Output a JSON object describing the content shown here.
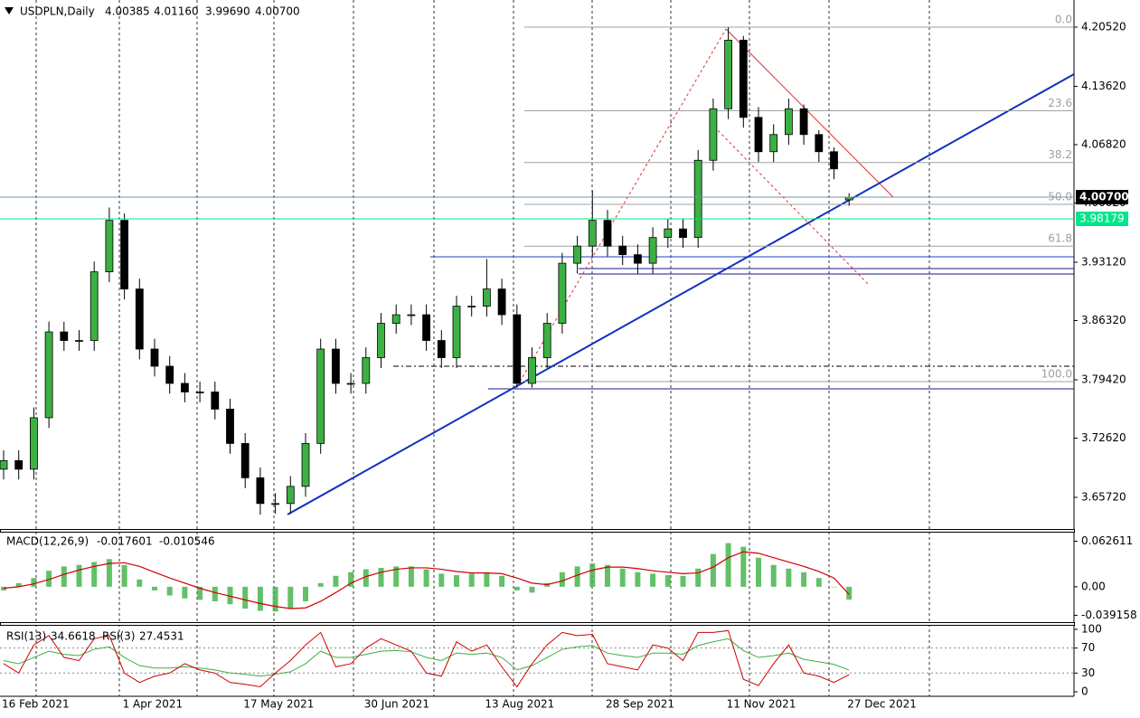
{
  "chart_data": [
    {
      "type": "candlestick",
      "title": "USDPLN,Daily",
      "last_bar_labels": [
        "4.00385",
        "4.01160",
        "3.99690",
        "4.00700"
      ],
      "categories": [
        "16 Feb 2021",
        null,
        null,
        null,
        null,
        null,
        null,
        null,
        "1 Apr 2021",
        null,
        null,
        null,
        null,
        null,
        null,
        null,
        "17 May 2021",
        null,
        null,
        null,
        null,
        null,
        null,
        null,
        "30 Jun 2021",
        null,
        null,
        null,
        null,
        null,
        null,
        null,
        "13 Aug 2021",
        null,
        null,
        null,
        null,
        null,
        null,
        null,
        "28 Sep 2021",
        null,
        null,
        null,
        null,
        null,
        null,
        null,
        "11 Nov 2021",
        null,
        null,
        null,
        null,
        null,
        null,
        null,
        "27 Dec 2021"
      ],
      "open": [
        3.69,
        3.7,
        3.69,
        3.75,
        3.85,
        3.84,
        3.84,
        3.92,
        3.98,
        3.9,
        3.83,
        3.81,
        3.79,
        3.78,
        3.78,
        3.76,
        3.72,
        3.68,
        3.65,
        3.65,
        3.67,
        3.72,
        3.83,
        3.79,
        3.79,
        3.82,
        3.86,
        3.87,
        3.87,
        3.84,
        3.82,
        3.88,
        3.88,
        3.9,
        3.87,
        3.79,
        3.82,
        3.86,
        3.93,
        3.95,
        3.98,
        3.95,
        3.94,
        3.93,
        3.96,
        3.97,
        3.96,
        4.05,
        4.11,
        4.19,
        4.1,
        4.06,
        4.08,
        4.11,
        4.08,
        4.06,
        4.00385
      ],
      "high": [
        3.712,
        3.712,
        3.762,
        3.862,
        3.862,
        3.852,
        3.932,
        3.995,
        3.988,
        3.912,
        3.842,
        3.822,
        3.802,
        3.792,
        3.792,
        3.772,
        3.732,
        3.692,
        3.662,
        3.682,
        3.732,
        3.842,
        3.842,
        3.802,
        3.832,
        3.872,
        3.882,
        3.882,
        3.882,
        3.852,
        3.892,
        3.892,
        3.935,
        3.912,
        3.882,
        3.832,
        3.872,
        3.942,
        3.962,
        4.015,
        3.992,
        3.962,
        3.952,
        3.972,
        3.982,
        3.982,
        4.062,
        4.122,
        4.205,
        4.195,
        4.112,
        4.092,
        4.122,
        4.115,
        4.085,
        4.065,
        4.0116
      ],
      "low": [
        3.678,
        3.678,
        3.678,
        3.738,
        3.828,
        3.828,
        3.828,
        3.908,
        3.888,
        3.818,
        3.798,
        3.778,
        3.768,
        3.768,
        3.748,
        3.708,
        3.668,
        3.637,
        3.638,
        3.638,
        3.658,
        3.708,
        3.778,
        3.778,
        3.778,
        3.808,
        3.848,
        3.858,
        3.828,
        3.808,
        3.808,
        3.868,
        3.868,
        3.858,
        3.785,
        3.785,
        3.808,
        3.848,
        3.918,
        3.938,
        3.938,
        3.928,
        3.918,
        3.918,
        3.948,
        3.948,
        3.948,
        4.038,
        4.098,
        4.088,
        4.048,
        4.048,
        4.068,
        4.068,
        4.048,
        4.028,
        3.9969
      ],
      "close": [
        3.7,
        3.69,
        3.75,
        3.85,
        3.84,
        3.84,
        3.92,
        3.98,
        3.9,
        3.83,
        3.81,
        3.79,
        3.78,
        3.78,
        3.76,
        3.72,
        3.68,
        3.65,
        3.65,
        3.67,
        3.72,
        3.83,
        3.79,
        3.79,
        3.82,
        3.86,
        3.87,
        3.87,
        3.84,
        3.82,
        3.88,
        3.88,
        3.9,
        3.87,
        3.79,
        3.82,
        3.86,
        3.93,
        3.95,
        3.98,
        3.95,
        3.94,
        3.93,
        3.96,
        3.97,
        3.96,
        4.05,
        4.11,
        4.19,
        4.1,
        4.06,
        4.08,
        4.11,
        4.08,
        4.06,
        4.04,
        4.007
      ],
      "up_color": "#3cb043",
      "down_color": "#000000",
      "ylim": [
        3.6203,
        4.2368
      ],
      "yticks": [
        {
          "value": 4.2052,
          "label": "4.20520"
        },
        {
          "value": 4.1362,
          "label": "4.13620"
        },
        {
          "value": 4.0682,
          "label": "4.06820"
        },
        {
          "value": 4.0002,
          "label": "4.00020"
        },
        {
          "value": 3.9312,
          "label": "3.93120"
        },
        {
          "value": 3.8632,
          "label": "3.86320"
        },
        {
          "value": 3.7942,
          "label": "3.79420"
        },
        {
          "value": 3.7262,
          "label": "3.72620"
        },
        {
          "value": 3.6572,
          "label": "3.65720"
        }
      ],
      "price_lines": [
        {
          "value": 3.98179,
          "label": "3.98179",
          "color": "#00e68a"
        },
        {
          "value": 4.007,
          "label": "4.00700",
          "color": "#000000"
        }
      ],
      "fib_levels": [
        {
          "ratio": "0.0",
          "price": 4.2052
        },
        {
          "ratio": "23.6",
          "price": 4.1077
        },
        {
          "ratio": "38.2",
          "price": 4.0474
        },
        {
          "ratio": "50.0",
          "price": 3.99865
        },
        {
          "ratio": "61.8",
          "price": 3.9499
        },
        {
          "ratio": "100.0",
          "price": 3.7921
        }
      ]
    },
    {
      "type": "macd",
      "title": "MACD(12,26,9)",
      "series": [
        {
          "name": "MACD",
          "color": "#3cb043",
          "values": [
            -0.005,
            0.005,
            0.012,
            0.022,
            0.028,
            0.03,
            0.034,
            0.038,
            0.03,
            0.01,
            -0.005,
            -0.012,
            -0.016,
            -0.018,
            -0.02,
            -0.024,
            -0.03,
            -0.033,
            -0.034,
            -0.03,
            -0.02,
            0.005,
            0.015,
            0.02,
            0.024,
            0.026,
            0.028,
            0.028,
            0.024,
            0.018,
            0.016,
            0.018,
            0.02,
            0.015,
            -0.005,
            -0.008,
            0.005,
            0.02,
            0.028,
            0.032,
            0.03,
            0.025,
            0.02,
            0.018,
            0.016,
            0.015,
            0.025,
            0.045,
            0.06,
            0.055,
            0.04,
            0.03,
            0.025,
            0.02,
            0.012,
            0.0,
            -0.017601
          ]
        },
        {
          "name": "Signal",
          "color": "#d00000",
          "values": [
            -0.002,
            0.0,
            0.004,
            0.01,
            0.017,
            0.023,
            0.028,
            0.032,
            0.033,
            0.028,
            0.02,
            0.012,
            0.005,
            -0.002,
            -0.008,
            -0.013,
            -0.018,
            -0.023,
            -0.027,
            -0.03,
            -0.029,
            -0.02,
            -0.008,
            0.005,
            0.014,
            0.02,
            0.024,
            0.026,
            0.026,
            0.024,
            0.021,
            0.019,
            0.019,
            0.018,
            0.012,
            0.005,
            0.003,
            0.008,
            0.016,
            0.023,
            0.027,
            0.027,
            0.025,
            0.022,
            0.02,
            0.018,
            0.019,
            0.027,
            0.04,
            0.048,
            0.046,
            0.04,
            0.034,
            0.028,
            0.021,
            0.012,
            -0.010546
          ]
        }
      ],
      "ylim": [
        -0.0486,
        0.0744
      ],
      "yticks": [
        0.062611,
        {
          "value": 0,
          "label": "0.00"
        },
        -0.039158
      ]
    },
    {
      "type": "line",
      "series": [
        {
          "name": "RSI(13)",
          "color": "#3cb043",
          "values": [
            50,
            45,
            55,
            65,
            60,
            58,
            68,
            72,
            55,
            42,
            38,
            38,
            40,
            38,
            35,
            30,
            28,
            25,
            28,
            32,
            45,
            65,
            55,
            55,
            60,
            65,
            66,
            64,
            55,
            50,
            62,
            60,
            62,
            55,
            35,
            42,
            55,
            68,
            72,
            74,
            62,
            58,
            55,
            62,
            62,
            60,
            74,
            80,
            85,
            66,
            55,
            58,
            62,
            52,
            48,
            44,
            34.6618
          ]
        },
        {
          "name": "RSI(3)",
          "color": "#d00000",
          "values": [
            45,
            30,
            75,
            90,
            55,
            50,
            85,
            90,
            30,
            15,
            25,
            30,
            45,
            35,
            30,
            15,
            12,
            8,
            30,
            50,
            75,
            95,
            40,
            45,
            70,
            85,
            75,
            65,
            30,
            25,
            80,
            65,
            75,
            40,
            8,
            45,
            75,
            95,
            90,
            92,
            45,
            40,
            35,
            75,
            70,
            50,
            95,
            95,
            98,
            20,
            10,
            45,
            75,
            30,
            25,
            15,
            27.4531
          ]
        }
      ],
      "ylim": [
        -4.3,
        105.7
      ],
      "yticks": [
        100,
        70,
        30,
        0
      ]
    }
  ]
}
